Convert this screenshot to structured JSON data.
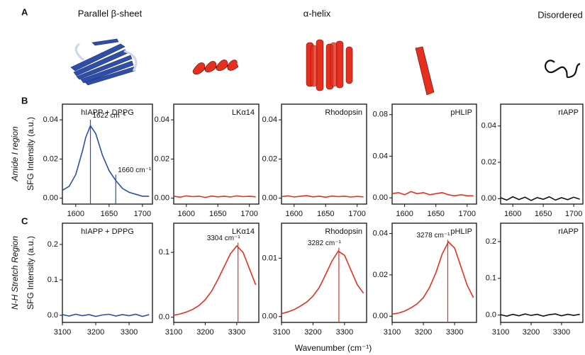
{
  "figure": {
    "panel_a": "A",
    "panel_b": "B",
    "panel_c": "C",
    "classes": [
      {
        "text": "Parallel β-sheet",
        "color": "#2f4eaa"
      },
      {
        "text": "α-helix",
        "color": "#e5301f"
      },
      {
        "text": "Disordered",
        "color": "#111111"
      }
    ],
    "row_b_label": "Amide I region",
    "row_c_label": "N-H Stretch Region",
    "y_label": "SFG Intensity (a.u.)",
    "x_label": "Wavenumber (cm⁻¹)"
  },
  "chart_data": [
    {
      "type": "line",
      "title": "hIAPP + DPPG",
      "xlim": [
        1580,
        1715
      ],
      "xticks": [
        1600,
        1650,
        1700
      ],
      "ylim": [
        -0.003,
        0.048
      ],
      "yticks": [
        {
          "value": 0,
          "label": "0.00"
        },
        0.02,
        0.04
      ],
      "x": [
        1580,
        1590,
        1600,
        1610,
        1615,
        1622,
        1630,
        1640,
        1650,
        1660,
        1670,
        1680,
        1690,
        1700,
        1710
      ],
      "series": [
        {
          "color": "#2f4eaa",
          "values": [
            0.004,
            0.006,
            0.012,
            0.024,
            0.031,
            0.037,
            0.033,
            0.022,
            0.014,
            0.009,
            0.005,
            0.003,
            0.002,
            0.001,
            0.001
          ]
        }
      ],
      "annotations": [
        {
          "text": "1622 cm⁻¹",
          "x": 1622,
          "y": 0.04
        },
        {
          "text": "1660 cm⁻¹",
          "x": 1660,
          "y": 0.012
        }
      ]
    },
    {
      "type": "line",
      "title": "LKα14",
      "xlim": [
        1580,
        1715
      ],
      "xticks": [
        1600,
        1650,
        1700
      ],
      "ylim": [
        -0.003,
        0.048
      ],
      "yticks": [
        {
          "value": 0,
          "label": "0.00"
        },
        0.02,
        0.04
      ],
      "x": [
        1580,
        1590,
        1600,
        1610,
        1620,
        1630,
        1640,
        1650,
        1660,
        1670,
        1680,
        1690,
        1700,
        1710
      ],
      "series": [
        {
          "color": "#e5301f",
          "values": [
            0.001,
            0.0005,
            0.0012,
            0.0008,
            0.001,
            0.0004,
            0.0011,
            0.0007,
            0.001,
            0.0006,
            0.0012,
            0.0008,
            0.001,
            0.0007
          ]
        }
      ]
    },
    {
      "type": "line",
      "title": "Rhodopsin",
      "xlim": [
        1580,
        1715
      ],
      "xticks": [
        1600,
        1650,
        1700
      ],
      "ylim": [
        -0.003,
        0.048
      ],
      "yticks": [
        {
          "value": 0,
          "label": "0.00"
        },
        0.02,
        0.04
      ],
      "x": [
        1580,
        1590,
        1600,
        1610,
        1620,
        1630,
        1640,
        1650,
        1660,
        1670,
        1680,
        1690,
        1700,
        1710
      ],
      "series": [
        {
          "color": "#e5301f",
          "values": [
            0.0008,
            0.0012,
            0.0006,
            0.001,
            0.0013,
            0.0007,
            0.001,
            0.0005,
            0.0011,
            0.0008,
            0.001,
            0.0006,
            0.0009,
            0.0007
          ]
        }
      ]
    },
    {
      "type": "line",
      "title": "pHLIP",
      "xlim": [
        1580,
        1715
      ],
      "xticks": [
        1600,
        1650,
        1700
      ],
      "ylim": [
        -0.006,
        0.09
      ],
      "yticks": [
        {
          "value": 0,
          "label": "0.00"
        },
        0.04,
        0.08
      ],
      "x": [
        1580,
        1590,
        1600,
        1610,
        1620,
        1630,
        1640,
        1650,
        1660,
        1670,
        1680,
        1690,
        1700,
        1710
      ],
      "series": [
        {
          "color": "#e5301f",
          "values": [
            0.004,
            0.005,
            0.003,
            0.006,
            0.004,
            0.005,
            0.003,
            0.004,
            0.005,
            0.003,
            0.002,
            0.003,
            0.002,
            0.002
          ]
        }
      ]
    },
    {
      "type": "line",
      "title": "rIAPP",
      "xlim": [
        1580,
        1715
      ],
      "xticks": [
        1600,
        1650,
        1700
      ],
      "ylim": [
        -0.003,
        0.052
      ],
      "yticks": [
        {
          "value": 0,
          "label": "0.00"
        },
        0.02,
        0.04
      ],
      "x": [
        1580,
        1590,
        1600,
        1610,
        1620,
        1630,
        1640,
        1650,
        1660,
        1670,
        1680,
        1690,
        1700,
        1710
      ],
      "series": [
        {
          "color": "#111111",
          "values": [
            0.0005,
            -0.0008,
            0.001,
            -0.0005,
            0.0008,
            -0.001,
            0.0006,
            -0.0004,
            0.001,
            -0.0008,
            0.0005,
            -0.0006,
            0.0008,
            -0.0003
          ]
        }
      ]
    },
    {
      "type": "line",
      "title": "hIAPP + DPPG",
      "xlim": [
        3100,
        3370
      ],
      "xticks": [
        3100,
        3200,
        3300
      ],
      "ylim": [
        -0.02,
        0.26
      ],
      "yticks": [
        {
          "value": 0,
          "label": "0.0"
        },
        0.1,
        0.2
      ],
      "x": [
        3100,
        3120,
        3140,
        3160,
        3180,
        3200,
        3220,
        3240,
        3260,
        3280,
        3300,
        3320,
        3340,
        3360
      ],
      "series": [
        {
          "color": "#2f4eaa",
          "values": [
            0.002,
            -0.002,
            0.003,
            -0.001,
            0.002,
            -0.003,
            0.001,
            0.003,
            -0.002,
            0.002,
            -0.001,
            0.003,
            -0.003,
            0.002
          ]
        }
      ]
    },
    {
      "type": "line",
      "title": "LKα14",
      "xlim": [
        3100,
        3370
      ],
      "xticks": [
        3100,
        3200,
        3300
      ],
      "ylim": [
        -0.008,
        0.145
      ],
      "yticks": [
        {
          "value": 0,
          "label": "0.0"
        },
        0.1
      ],
      "x": [
        3100,
        3120,
        3140,
        3160,
        3180,
        3200,
        3220,
        3240,
        3260,
        3280,
        3300,
        3320,
        3340,
        3360
      ],
      "series": [
        {
          "color": "#e5301f",
          "values": [
            0.003,
            0.005,
            0.008,
            0.012,
            0.018,
            0.027,
            0.04,
            0.058,
            0.078,
            0.098,
            0.11,
            0.1,
            0.075,
            0.05
          ]
        }
      ],
      "annotations": [
        {
          "text": "3304 cm⁻¹",
          "x": 3304,
          "y": 0.115
        }
      ]
    },
    {
      "type": "line",
      "title": "Rhodopsin",
      "xlim": [
        3100,
        3370
      ],
      "xticks": [
        3100,
        3200,
        3300
      ],
      "ylim": [
        -0.001,
        0.016
      ],
      "yticks": [
        {
          "value": 0,
          "label": "0.00"
        },
        0.01
      ],
      "x": [
        3100,
        3120,
        3140,
        3160,
        3180,
        3200,
        3220,
        3240,
        3260,
        3280,
        3300,
        3320,
        3340,
        3360
      ],
      "series": [
        {
          "color": "#e5301f",
          "values": [
            0.0005,
            0.0008,
            0.0012,
            0.0018,
            0.0025,
            0.0035,
            0.005,
            0.0072,
            0.0095,
            0.0112,
            0.0105,
            0.008,
            0.0055,
            0.004
          ]
        }
      ],
      "annotations": [
        {
          "text": "3282 cm⁻¹",
          "x": 3282,
          "y": 0.0118
        }
      ]
    },
    {
      "type": "line",
      "title": "pHLIP",
      "xlim": [
        3100,
        3370
      ],
      "xticks": [
        3100,
        3200,
        3300
      ],
      "ylim": [
        -0.003,
        0.045
      ],
      "yticks": [
        {
          "value": 0,
          "label": "0.00"
        },
        0.02,
        0.04
      ],
      "x": [
        3100,
        3120,
        3140,
        3160,
        3180,
        3200,
        3220,
        3240,
        3260,
        3280,
        3300,
        3320,
        3340,
        3360
      ],
      "series": [
        {
          "color": "#e5301f",
          "values": [
            0.001,
            0.0015,
            0.0025,
            0.004,
            0.006,
            0.009,
            0.014,
            0.021,
            0.03,
            0.036,
            0.033,
            0.024,
            0.015,
            0.009
          ]
        }
      ],
      "annotations": [
        {
          "text": "3278 cm⁻¹",
          "x": 3278,
          "y": 0.037
        }
      ]
    },
    {
      "type": "line",
      "title": "rIAPP",
      "xlim": [
        3100,
        3370
      ],
      "xticks": [
        3100,
        3200,
        3300
      ],
      "ylim": [
        -0.02,
        0.25
      ],
      "yticks": [
        {
          "value": 0,
          "label": "0.0"
        },
        0.1,
        0.2
      ],
      "x": [
        3100,
        3120,
        3140,
        3160,
        3180,
        3200,
        3220,
        3240,
        3260,
        3280,
        3300,
        3320,
        3340,
        3360
      ],
      "series": [
        {
          "color": "#111111",
          "values": [
            0.001,
            -0.003,
            0.002,
            -0.002,
            0.003,
            -0.001,
            0.002,
            -0.003,
            0.001,
            0.003,
            -0.002,
            0.002,
            -0.001,
            0.002
          ]
        }
      ]
    }
  ]
}
